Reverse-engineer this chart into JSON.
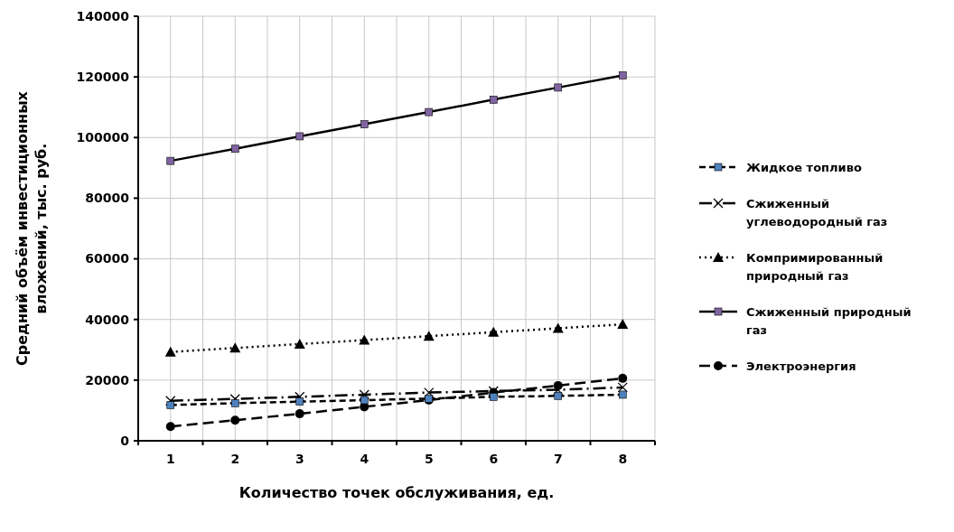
{
  "chart_data": {
    "type": "line",
    "xlabel": "Количество точек обслуживания,  ед.",
    "ylabel": "Средний объём инвестиционных вложений, тыс. руб.",
    "x": [
      1,
      2,
      3,
      4,
      5,
      6,
      7,
      8
    ],
    "xlim": [
      0.5,
      8.5
    ],
    "xticks": [
      1,
      2,
      3,
      4,
      5,
      6,
      7,
      8
    ],
    "ylim": [
      0,
      140000
    ],
    "yticks": [
      0,
      20000,
      40000,
      60000,
      80000,
      100000,
      120000,
      140000
    ],
    "grid": true,
    "legend": "right",
    "series": [
      {
        "name": "Жидкое топливо",
        "color": "#4f81bd",
        "marker": "square",
        "line_style": "dashed",
        "values": [
          11800,
          12400,
          12900,
          13400,
          13900,
          14500,
          14800,
          15200
        ]
      },
      {
        "name": "Сжиженный углеводородный газ",
        "color": "#000000",
        "marker": "cross",
        "line_style": "dashed",
        "values": [
          13200,
          13800,
          14500,
          15200,
          15900,
          16400,
          16800,
          17600
        ]
      },
      {
        "name": "Компримированный природный газ",
        "color": "#000000",
        "marker": "triangle",
        "line_style": "dotted",
        "values": [
          29300,
          30600,
          31900,
          33200,
          34500,
          35800,
          37100,
          38400
        ]
      },
      {
        "name": "Сжиженный природный газ",
        "color": "#8064a2",
        "marker": "square",
        "line_style": "solid",
        "values": [
          92300,
          96300,
          100400,
          104400,
          108400,
          112500,
          116500,
          120500
        ]
      },
      {
        "name": "Электроэнергия",
        "color": "#000000",
        "marker": "circle",
        "line_style": "dashed",
        "values": [
          4700,
          6800,
          8900,
          11200,
          13400,
          15900,
          18200,
          20600
        ]
      }
    ]
  }
}
